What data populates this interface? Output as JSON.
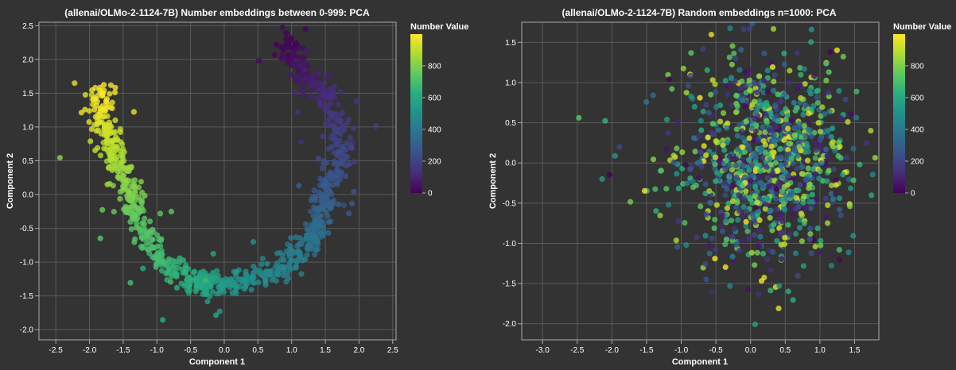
{
  "chart_data": [
    {
      "type": "scatter",
      "title": "(allenai/OLMo-2-1124-7B) Number embeddings between 0-999: PCA",
      "xlabel": "Component 1",
      "ylabel": "Component 2",
      "xlim": [
        -2.75,
        2.55
      ],
      "ylim": [
        -2.15,
        2.55
      ],
      "xticks": [
        -2.5,
        -2.0,
        -1.5,
        -1.0,
        -0.5,
        0.0,
        0.5,
        1.0,
        1.5,
        2.0,
        2.5
      ],
      "yticks": [
        -2.0,
        -1.5,
        -1.0,
        -0.5,
        0.0,
        0.5,
        1.0,
        1.5,
        2.0,
        2.5
      ],
      "grid": true,
      "n_points": 1000,
      "value_range": [
        0,
        999
      ],
      "color_encoding": "Number Value (0-999), viridis",
      "path_description": "Points trace a U-shaped arc: value 0 near (0.95, 2.3), going down through (1.6, 1.2), (1.4, -0.4), (0.6, -1.25), (-0.3, -1.35), (-1.1, -0.8), (-1.4, 0.1), (-1.7, 0.7) to value 999 near (-1.8, 1.5).",
      "path_anchors": [
        {
          "value": 0,
          "x": 0.95,
          "y": 2.3
        },
        {
          "value": 60,
          "x": 1.1,
          "y": 1.8
        },
        {
          "value": 120,
          "x": 1.55,
          "y": 1.45
        },
        {
          "value": 200,
          "x": 1.75,
          "y": 0.7
        },
        {
          "value": 280,
          "x": 1.5,
          "y": 0.0
        },
        {
          "value": 360,
          "x": 1.4,
          "y": -0.6
        },
        {
          "value": 450,
          "x": 0.8,
          "y": -1.15
        },
        {
          "value": 530,
          "x": 0.0,
          "y": -1.35
        },
        {
          "value": 610,
          "x": -0.5,
          "y": -1.3
        },
        {
          "value": 690,
          "x": -1.05,
          "y": -0.85
        },
        {
          "value": 760,
          "x": -1.35,
          "y": -0.2
        },
        {
          "value": 830,
          "x": -1.5,
          "y": 0.3
        },
        {
          "value": 900,
          "x": -1.7,
          "y": 0.8
        },
        {
          "value": 960,
          "x": -1.85,
          "y": 1.25
        },
        {
          "value": 999,
          "x": -1.75,
          "y": 1.55
        }
      ],
      "legend": {
        "title": "Number Value",
        "ticks": [
          0,
          200,
          400,
          600,
          800
        ]
      }
    },
    {
      "type": "scatter",
      "title": "(allenai/OLMo-2-1124-7B) Random embeddings n=1000: PCA",
      "xlabel": "Component 1",
      "ylabel": "Component 2",
      "xlim": [
        -3.3,
        1.85
      ],
      "ylim": [
        -2.2,
        1.75
      ],
      "xticks": [
        -3.0,
        -2.5,
        -2.0,
        -1.5,
        -1.0,
        -0.5,
        0.0,
        0.5,
        1.0,
        1.5
      ],
      "yticks": [
        -2.0,
        -1.5,
        -1.0,
        -0.5,
        0.0,
        0.5,
        1.0,
        1.5
      ],
      "grid": true,
      "n_points": 1000,
      "value_range": [
        0,
        999
      ],
      "color_encoding": "Number Value (0-999), viridis",
      "cluster": {
        "center_x": 0.25,
        "center_y": 0.05,
        "spread_x": 0.55,
        "spread_y": 0.62
      },
      "legend": {
        "title": "Number Value",
        "ticks": [
          0,
          200,
          400,
          600,
          800
        ]
      }
    }
  ]
}
